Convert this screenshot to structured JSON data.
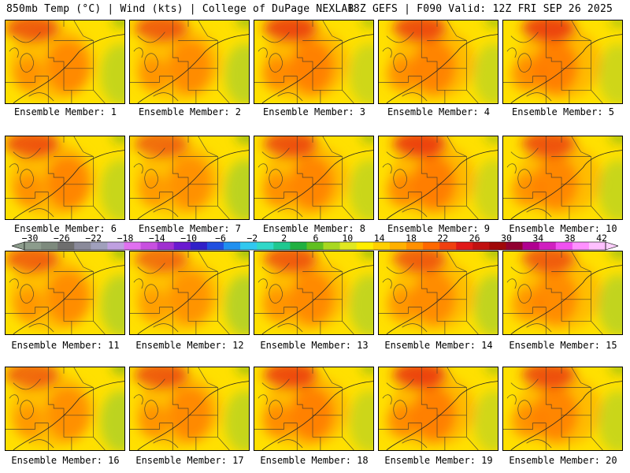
{
  "header": {
    "left": "850mb Temp (°C) | Wind (kts) | College of DuPage NEXLAB",
    "right": "18Z GEFS | F090 Valid: 12Z FRI SEP 26 2025"
  },
  "panels": [
    {
      "label": "Ensemble Member: 1",
      "warmth": 0.55
    },
    {
      "label": "Ensemble Member: 2",
      "warmth": 0.5
    },
    {
      "label": "Ensemble Member: 3",
      "warmth": 0.7
    },
    {
      "label": "Ensemble Member: 4",
      "warmth": 0.65
    },
    {
      "label": "Ensemble Member: 5",
      "warmth": 0.72
    },
    {
      "label": "Ensemble Member: 6",
      "warmth": 0.6
    },
    {
      "label": "Ensemble Member: 7",
      "warmth": 0.4
    },
    {
      "label": "Ensemble Member: 8",
      "warmth": 0.62
    },
    {
      "label": "Ensemble Member: 9",
      "warmth": 0.75
    },
    {
      "label": "Ensemble Member: 10",
      "warmth": 0.58
    },
    {
      "label": "Ensemble Member: 11",
      "warmth": 0.45
    },
    {
      "label": "Ensemble Member: 12",
      "warmth": 0.35
    },
    {
      "label": "Ensemble Member: 13",
      "warmth": 0.52
    },
    {
      "label": "Ensemble Member: 14",
      "warmth": 0.48
    },
    {
      "label": "Ensemble Member: 15",
      "warmth": 0.5
    },
    {
      "label": "Ensemble Member: 16",
      "warmth": 0.42
    },
    {
      "label": "Ensemble Member: 17",
      "warmth": 0.55
    },
    {
      "label": "Ensemble Member: 18",
      "warmth": 0.68
    },
    {
      "label": "Ensemble Member: 19",
      "warmth": 0.74
    },
    {
      "label": "Ensemble Member: 20",
      "warmth": 0.62
    }
  ],
  "colorbar": {
    "tick_labels": [
      "−30",
      "−26",
      "−22",
      "−18",
      "−14",
      "−10",
      "−6",
      "−2",
      "2",
      "6",
      "10",
      "14",
      "18",
      "22",
      "26",
      "30",
      "34",
      "38",
      "42"
    ],
    "colors": [
      "#8c9c8c",
      "#7d8a7d",
      "#6e6e6e",
      "#8a8a9a",
      "#a0a0bc",
      "#bfa0e0",
      "#e070f0",
      "#c850e0",
      "#a030d0",
      "#6a1ad0",
      "#3020c8",
      "#2050e0",
      "#2090f0",
      "#30c8f0",
      "#30d8c8",
      "#20c890",
      "#20b040",
      "#60c020",
      "#a8d820",
      "#e0e820",
      "#ffee00",
      "#ffd000",
      "#ffb000",
      "#ff9000",
      "#ff6800",
      "#f04010",
      "#e01818",
      "#c01010",
      "#a00808",
      "#900030",
      "#b00090",
      "#d020c0",
      "#f050f0",
      "#ff90ff",
      "#ffc0ff"
    ]
  },
  "legend_colors": {
    "cool": "#9acd32",
    "mild": "#ffe000",
    "warm": "#ffb000",
    "hot": "#ff7000",
    "veryhot": "#e82010"
  }
}
